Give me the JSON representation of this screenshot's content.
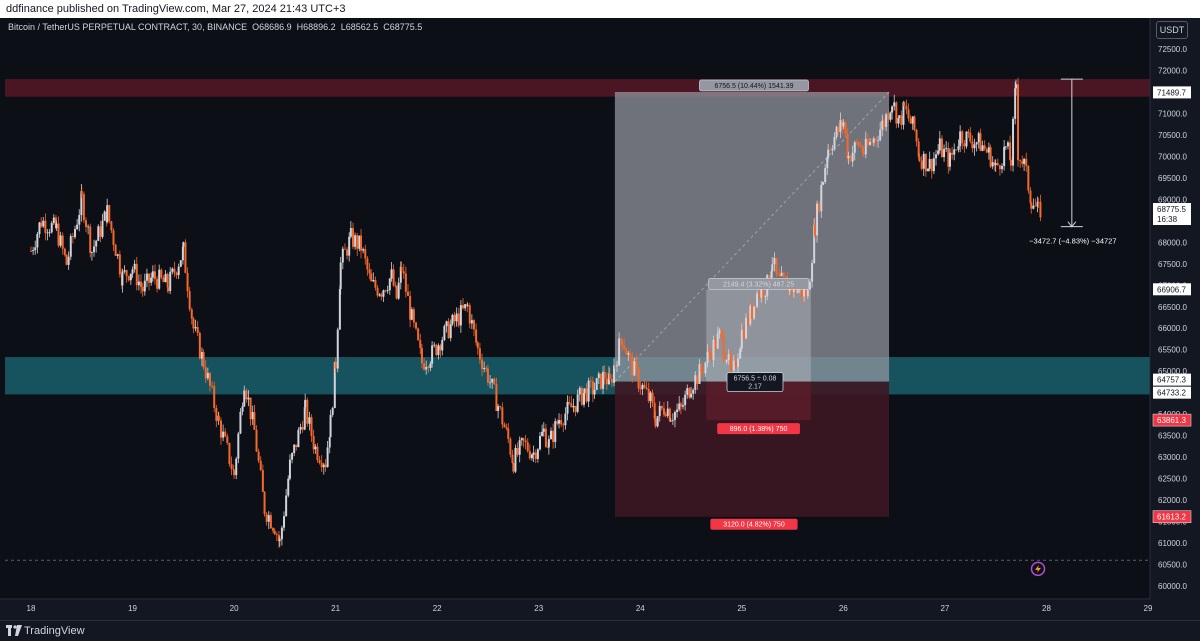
{
  "header": {
    "publisher": "ddfinance published on TradingView.com, Mar 27, 2024 21:43 UTC+3"
  },
  "legend": {
    "symbol": "Bitcoin / TetherUS PERPETUAL CONTRACT, 30, BINANCE",
    "open": "O68686.9",
    "high": "H68896.2",
    "low": "L68562.5",
    "close": "C68775.5"
  },
  "currency_button": "USDT",
  "footer": {
    "brand": "TradingView"
  },
  "colors": {
    "background": "#131722",
    "up_candle": "#d1d4dc",
    "down_candle": "#f7682b",
    "resistance_zone": "#4a1623",
    "support_zone": "#17535e",
    "target_zone": "#9598a1",
    "stop_zone": "#3d1722",
    "stop_label": "#f23645"
  },
  "chart_data": {
    "type": "candlestick",
    "title": "Bitcoin / TetherUS PERPETUAL CONTRACT, 30, BINANCE",
    "x_ticks": [
      "18",
      "19",
      "20",
      "21",
      "22",
      "23",
      "24",
      "25",
      "26",
      "27",
      "28",
      "29"
    ],
    "y_ticks": [
      "72500.0",
      "72000.0",
      "71500.0",
      "71000.0",
      "70500.0",
      "70000.0",
      "69500.0",
      "69000.0",
      "68500.0",
      "68000.0",
      "67500.0",
      "67000.0",
      "66500.0",
      "66000.0",
      "65500.0",
      "65000.0",
      "64500.0",
      "64000.0",
      "63500.0",
      "63000.0",
      "62500.0",
      "62000.0",
      "61500.0",
      "61000.0",
      "60500.0",
      "60000.0"
    ],
    "ylim": [
      59800,
      72800
    ],
    "grid": false,
    "price_path": [
      [
        18.0,
        67800
      ],
      [
        18.1,
        68500
      ],
      [
        18.25,
        68300
      ],
      [
        18.35,
        67500
      ],
      [
        18.5,
        69000
      ],
      [
        18.6,
        67800
      ],
      [
        18.75,
        68700
      ],
      [
        18.9,
        67200
      ],
      [
        19.0,
        67400
      ],
      [
        19.1,
        66900
      ],
      [
        19.2,
        67200
      ],
      [
        19.35,
        67000
      ],
      [
        19.5,
        67800
      ],
      [
        19.6,
        66000
      ],
      [
        19.7,
        65200
      ],
      [
        19.85,
        63800
      ],
      [
        20.0,
        62600
      ],
      [
        20.1,
        64800
      ],
      [
        20.2,
        63600
      ],
      [
        20.3,
        61800
      ],
      [
        20.4,
        61400
      ],
      [
        20.45,
        61000
      ],
      [
        20.55,
        62800
      ],
      [
        20.7,
        64100
      ],
      [
        20.8,
        63200
      ],
      [
        20.9,
        62900
      ],
      [
        20.95,
        63800
      ],
      [
        21.0,
        65200
      ],
      [
        21.05,
        67500
      ],
      [
        21.15,
        68100
      ],
      [
        21.25,
        67900
      ],
      [
        21.35,
        67000
      ],
      [
        21.45,
        66900
      ],
      [
        21.55,
        67200
      ],
      [
        21.6,
        66700
      ],
      [
        21.65,
        67400
      ],
      [
        21.75,
        66200
      ],
      [
        21.85,
        65200
      ],
      [
        21.95,
        65400
      ],
      [
        22.05,
        65800
      ],
      [
        22.15,
        66100
      ],
      [
        22.3,
        66500
      ],
      [
        22.4,
        65500
      ],
      [
        22.5,
        64900
      ],
      [
        22.6,
        64200
      ],
      [
        22.7,
        63400
      ],
      [
        22.75,
        62900
      ],
      [
        22.85,
        63300
      ],
      [
        22.95,
        63100
      ],
      [
        23.05,
        63600
      ],
      [
        23.1,
        63300
      ],
      [
        23.2,
        63900
      ],
      [
        23.3,
        64100
      ],
      [
        23.45,
        64500
      ],
      [
        23.55,
        64600
      ],
      [
        23.65,
        64900
      ],
      [
        23.7,
        64700
      ],
      [
        23.75,
        65200
      ],
      [
        23.82,
        65800
      ],
      [
        23.9,
        65200
      ],
      [
        24.0,
        64700
      ],
      [
        24.1,
        64300
      ],
      [
        24.15,
        63900
      ],
      [
        24.25,
        64200
      ],
      [
        24.3,
        64000
      ],
      [
        24.4,
        64100
      ],
      [
        24.5,
        64700
      ],
      [
        24.6,
        65000
      ],
      [
        24.7,
        65500
      ],
      [
        24.78,
        65800
      ],
      [
        24.85,
        65400
      ],
      [
        24.9,
        64800
      ],
      [
        25.0,
        65900
      ],
      [
        25.1,
        66400
      ],
      [
        25.15,
        66800
      ],
      [
        25.25,
        67000
      ],
      [
        25.3,
        67600
      ],
      [
        25.35,
        67100
      ],
      [
        25.45,
        67000
      ],
      [
        25.55,
        66900
      ],
      [
        25.65,
        66800
      ],
      [
        25.72,
        68400
      ],
      [
        25.8,
        69500
      ],
      [
        25.85,
        70200
      ],
      [
        25.95,
        70600
      ],
      [
        26.0,
        70800
      ],
      [
        26.05,
        70000
      ],
      [
        26.15,
        70300
      ],
      [
        26.2,
        70100
      ],
      [
        26.3,
        70400
      ],
      [
        26.4,
        70800
      ],
      [
        26.48,
        71300
      ],
      [
        26.55,
        70800
      ],
      [
        26.6,
        71100
      ],
      [
        26.7,
        70600
      ],
      [
        26.75,
        70000
      ],
      [
        26.85,
        69800
      ],
      [
        26.95,
        70200
      ],
      [
        27.05,
        69900
      ],
      [
        27.15,
        70500
      ],
      [
        27.25,
        70400
      ],
      [
        27.35,
        70300
      ],
      [
        27.45,
        70000
      ],
      [
        27.5,
        69700
      ],
      [
        27.6,
        70200
      ],
      [
        27.65,
        69900
      ],
      [
        27.7,
        71700
      ],
      [
        27.72,
        70100
      ],
      [
        27.78,
        69800
      ],
      [
        27.85,
        69000
      ],
      [
        27.92,
        68700
      ],
      [
        27.95,
        68800
      ]
    ],
    "levels": {
      "current_price": "68775.5",
      "countdown": "16:38",
      "resistance": "71489.7",
      "mid_level": "66906.7",
      "support_top": "64757.3",
      "support_bottom": "64733.2",
      "stop_1": "63861.3",
      "stop_2": "61613.2"
    },
    "zones": {
      "resistance": [
        71390,
        71800
      ],
      "support": [
        64460,
        65330
      ],
      "position_1": {
        "entry": 64757,
        "target": 71500,
        "stop": 61613,
        "x": [
          23.75,
          26.45
        ]
      },
      "position_2": {
        "entry": 64757,
        "target": 66906,
        "stop": 63861,
        "x": [
          24.65,
          25.68
        ]
      },
      "bottom_dashed": 60600
    },
    "annotations": {
      "target_1": "6756.5 (10.44%) 1541.39",
      "target_2": "2149.4 (3.32%) 487.25",
      "entry_1": "6756.5 ÷ 0.08",
      "entry_2": "2.17",
      "stop_label_1": "896.0 (1.38%) 750",
      "stop_label_2": "3120.0 (4.82%) 750",
      "measure": "−3472.7 (−4.83%) −34727"
    },
    "measure": {
      "x": 28.25,
      "y": [
        71800,
        68365
      ]
    }
  }
}
